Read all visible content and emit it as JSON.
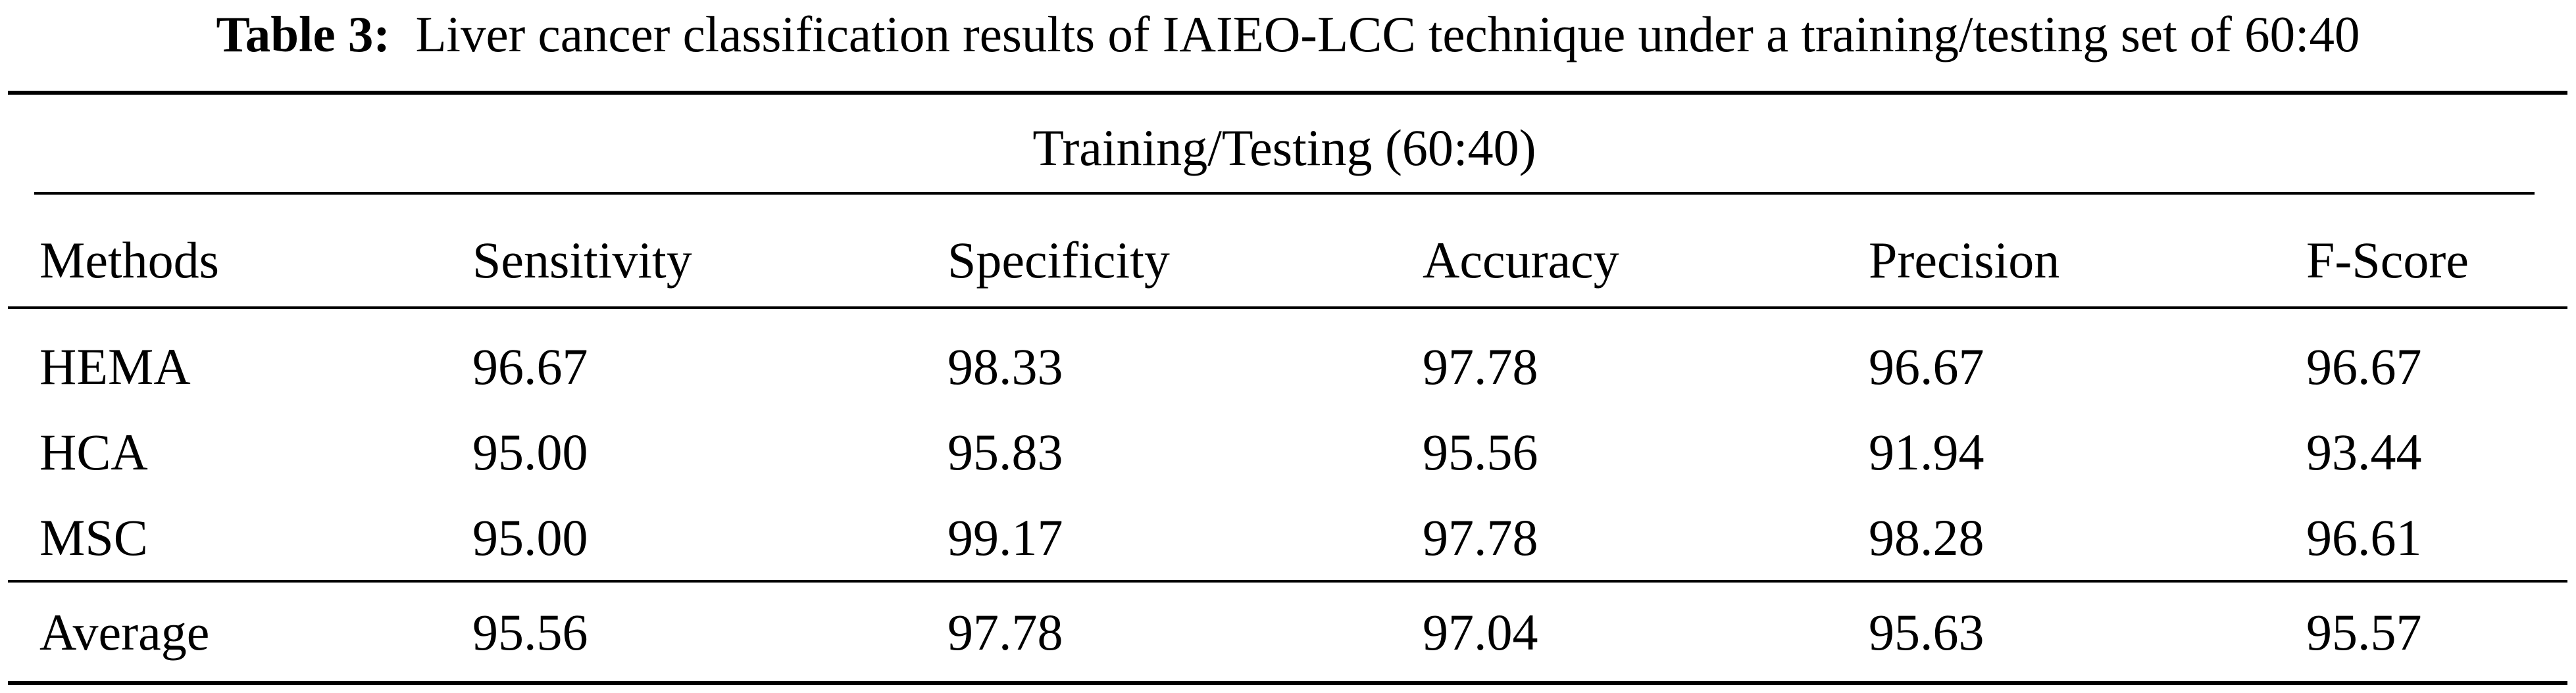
{
  "caption": {
    "label": "Table 3:",
    "text": "Liver cancer classification results of IAIEO-LCC technique under a training/testing set of 60:40"
  },
  "table": {
    "group_header": "Training/Testing (60:40)",
    "columns": [
      "Methods",
      "Sensitivity",
      "Specificity",
      "Accuracy",
      "Precision",
      "F-Score"
    ],
    "rows": [
      [
        "HEMA",
        "96.67",
        "98.33",
        "97.78",
        "96.67",
        "96.67"
      ],
      [
        "HCA",
        "95.00",
        "95.83",
        "95.56",
        "91.94",
        "93.44"
      ],
      [
        "MSC",
        "95.00",
        "99.17",
        "97.78",
        "98.28",
        "96.61"
      ]
    ],
    "average_row": [
      "Average",
      "95.56",
      "97.78",
      "97.04",
      "95.63",
      "95.57"
    ]
  }
}
